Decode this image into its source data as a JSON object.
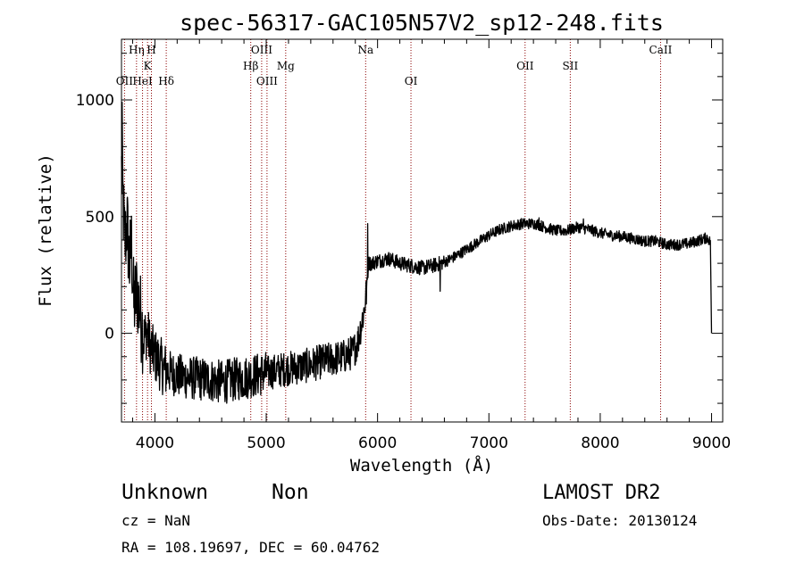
{
  "chart_data": {
    "type": "line",
    "title": "spec-56317-GAC105N57V2_sp12-248.fits",
    "xlabel": "Wavelength (Å)",
    "ylabel": "Flux (relative)",
    "xlim": [
      3700,
      9100
    ],
    "ylim": [
      -380,
      1260
    ],
    "x_ticks": [
      4000,
      5000,
      6000,
      7000,
      8000,
      9000
    ],
    "y_ticks": [
      0,
      500,
      1000
    ],
    "grid": false,
    "series": [
      {
        "anchors": [
          [
            3700,
            700
          ],
          [
            3715,
            560
          ],
          [
            3730,
            380
          ],
          [
            3750,
            480
          ],
          [
            3770,
            290
          ],
          [
            3790,
            380
          ],
          [
            3810,
            120
          ],
          [
            3840,
            180
          ],
          [
            3870,
            80
          ],
          [
            3900,
            -20
          ],
          [
            3930,
            10
          ],
          [
            3960,
            -60
          ],
          [
            3990,
            -90
          ],
          [
            4020,
            -110
          ],
          [
            4060,
            -140
          ],
          [
            4100,
            -160
          ],
          [
            4150,
            -170
          ],
          [
            4200,
            -180
          ],
          [
            4300,
            -190
          ],
          [
            4400,
            -195
          ],
          [
            4500,
            -200
          ],
          [
            4600,
            -210
          ],
          [
            4700,
            -200
          ],
          [
            4800,
            -190
          ],
          [
            4900,
            -180
          ],
          [
            5000,
            -170
          ],
          [
            5100,
            -160
          ],
          [
            5200,
            -150
          ],
          [
            5300,
            -145
          ],
          [
            5400,
            -135
          ],
          [
            5500,
            -120
          ],
          [
            5600,
            -110
          ],
          [
            5700,
            -100
          ],
          [
            5780,
            -80
          ],
          [
            5820,
            -40
          ],
          [
            5850,
            30
          ],
          [
            5880,
            100
          ],
          [
            5900,
            180
          ],
          [
            5920,
            300
          ],
          [
            5950,
            300
          ],
          [
            6000,
            310
          ],
          [
            6100,
            320
          ],
          [
            6200,
            300
          ],
          [
            6300,
            290
          ],
          [
            6400,
            280
          ],
          [
            6500,
            290
          ],
          [
            6600,
            305
          ],
          [
            6700,
            330
          ],
          [
            6800,
            360
          ],
          [
            6900,
            390
          ],
          [
            7000,
            420
          ],
          [
            7100,
            445
          ],
          [
            7200,
            460
          ],
          [
            7300,
            470
          ],
          [
            7400,
            470
          ],
          [
            7450,
            465
          ],
          [
            7500,
            455
          ],
          [
            7600,
            440
          ],
          [
            7700,
            440
          ],
          [
            7800,
            455
          ],
          [
            7900,
            445
          ],
          [
            8000,
            430
          ],
          [
            8100,
            420
          ],
          [
            8200,
            415
          ],
          [
            8300,
            405
          ],
          [
            8400,
            395
          ],
          [
            8500,
            395
          ],
          [
            8600,
            380
          ],
          [
            8700,
            380
          ],
          [
            8800,
            385
          ],
          [
            8900,
            400
          ],
          [
            8960,
            410
          ],
          [
            8990,
            390
          ],
          [
            9000,
            0
          ]
        ],
        "spikes": [
          [
            3706,
            990
          ],
          [
            5911,
            470
          ],
          [
            6563,
            180
          ],
          [
            7450,
            495
          ],
          [
            7850,
            490
          ]
        ]
      }
    ],
    "annotations": [
      {
        "label": "OII",
        "wavelength": 3727,
        "row": 3
      },
      {
        "label": "Hη",
        "wavelength": 3835,
        "row": 1
      },
      {
        "label": "HeI",
        "wavelength": 3889,
        "row": 3
      },
      {
        "label": "K",
        "wavelength": 3934,
        "row": 2
      },
      {
        "label": "H",
        "wavelength": 3969,
        "row": 1
      },
      {
        "label": "Hδ",
        "wavelength": 4102,
        "row": 3
      },
      {
        "label": "Hβ",
        "wavelength": 4861,
        "row": 2
      },
      {
        "label": "OIII",
        "wavelength": 4959,
        "row": 1
      },
      {
        "label": "OIII",
        "wavelength": 5007,
        "row": 3
      },
      {
        "label": "Mg",
        "wavelength": 5175,
        "row": 2
      },
      {
        "label": "Na",
        "wavelength": 5893,
        "row": 1
      },
      {
        "label": "OI",
        "wavelength": 6300,
        "row": 3
      },
      {
        "label": "OII",
        "wavelength": 7325,
        "row": 2
      },
      {
        "label": "SII",
        "wavelength": 7731,
        "row": 2
      },
      {
        "label": "CaII",
        "wavelength": 8542,
        "row": 1
      }
    ]
  },
  "info": {
    "object_class": "Unknown",
    "object_subclass": "Non",
    "cz": "cz = NaN",
    "coords": "RA = 108.19697, DEC =  60.04762",
    "survey": "LAMOST DR2",
    "obs_date": "Obs-Date: 20130124"
  },
  "colors": {
    "spectrum": "#000000",
    "annotation_line": "#8b0000",
    "axis": "#000000",
    "background": "#ffffff"
  }
}
